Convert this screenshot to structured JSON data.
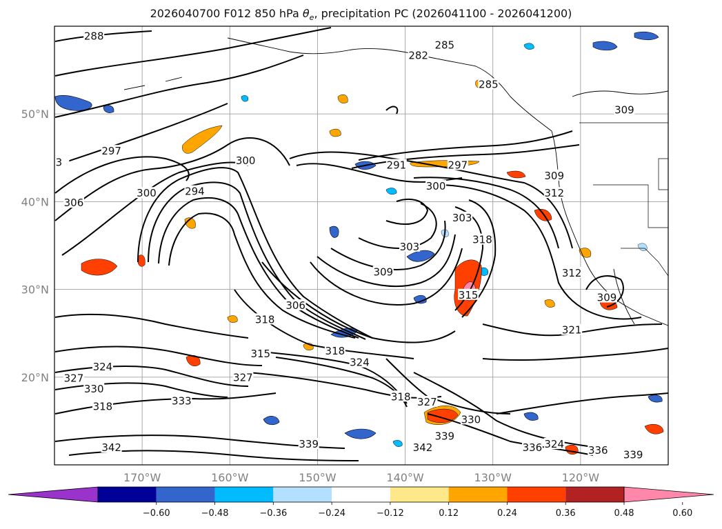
{
  "title": {
    "prefix": "2026040700 F012 850 hPa ",
    "theta_symbol": "θ",
    "theta_sub": "e",
    "suffix": ", precipitation PC (2026041100 - 2026041200)"
  },
  "map": {
    "extent": {
      "lon": [
        -180,
        -110
      ],
      "lat": [
        10,
        60
      ]
    },
    "lat_ticks": [
      {
        "value": 20,
        "label": "20°N"
      },
      {
        "value": 30,
        "label": "30°N"
      },
      {
        "value": 40,
        "label": "40°N"
      },
      {
        "value": 50,
        "label": "50°N"
      }
    ],
    "lon_ticks": [
      {
        "value": -170,
        "label": "170°W"
      },
      {
        "value": -160,
        "label": "160°W"
      },
      {
        "value": -150,
        "label": "150°W"
      },
      {
        "value": -140,
        "label": "140°W"
      },
      {
        "value": -130,
        "label": "130°W"
      },
      {
        "value": -120,
        "label": "120°W"
      }
    ],
    "gridlines": true,
    "contour_labels": [
      {
        "text": "288",
        "lon": -175.5,
        "lat": 58.7
      },
      {
        "text": "282",
        "lon": -138.5,
        "lat": 56.5
      },
      {
        "text": "285",
        "lon": -135.5,
        "lat": 57.7
      },
      {
        "text": "285",
        "lon": -130.5,
        "lat": 53.2
      },
      {
        "text": "297",
        "lon": -173.5,
        "lat": 45.6
      },
      {
        "text": "300",
        "lon": -169.5,
        "lat": 40.8
      },
      {
        "text": "306",
        "lon": -177.8,
        "lat": 39.7
      },
      {
        "text": "294",
        "lon": -164.0,
        "lat": 41.0
      },
      {
        "text": "300",
        "lon": -158.2,
        "lat": 44.5
      },
      {
        "text": "291",
        "lon": -141.0,
        "lat": 44.0
      },
      {
        "text": "297",
        "lon": -134.0,
        "lat": 44.0
      },
      {
        "text": "300",
        "lon": -136.5,
        "lat": 41.6
      },
      {
        "text": "303",
        "lon": -133.5,
        "lat": 38.0
      },
      {
        "text": "303",
        "lon": -139.5,
        "lat": 34.7
      },
      {
        "text": "309",
        "lon": -142.5,
        "lat": 31.8
      },
      {
        "text": "318",
        "lon": -131.2,
        "lat": 35.5
      },
      {
        "text": "315",
        "lon": -132.8,
        "lat": 29.2
      },
      {
        "text": "312",
        "lon": -123.0,
        "lat": 40.8
      },
      {
        "text": "309",
        "lon": -123.0,
        "lat": 42.8
      },
      {
        "text": "309",
        "lon": -115.0,
        "lat": 50.3
      },
      {
        "text": "312",
        "lon": -121.0,
        "lat": 31.7
      },
      {
        "text": "309",
        "lon": -117.0,
        "lat": 28.9
      },
      {
        "text": "306",
        "lon": -152.5,
        "lat": 28.0
      },
      {
        "text": "318",
        "lon": -156.0,
        "lat": 26.4
      },
      {
        "text": "321",
        "lon": -121.0,
        "lat": 25.2
      },
      {
        "text": "315",
        "lon": -156.5,
        "lat": 22.5
      },
      {
        "text": "318",
        "lon": -148.0,
        "lat": 22.8
      },
      {
        "text": "324",
        "lon": -145.2,
        "lat": 21.5
      },
      {
        "text": "324",
        "lon": -174.5,
        "lat": 21.0
      },
      {
        "text": "327",
        "lon": -177.8,
        "lat": 19.7
      },
      {
        "text": "330",
        "lon": -175.5,
        "lat": 18.5
      },
      {
        "text": "327",
        "lon": -158.5,
        "lat": 19.8
      },
      {
        "text": "318",
        "lon": -140.5,
        "lat": 17.6
      },
      {
        "text": "327",
        "lon": -137.5,
        "lat": 17.0
      },
      {
        "text": "333",
        "lon": -165.5,
        "lat": 17.1
      },
      {
        "text": "318",
        "lon": -174.5,
        "lat": 16.5
      },
      {
        "text": "330",
        "lon": -132.5,
        "lat": 15.0
      },
      {
        "text": "339",
        "lon": -135.5,
        "lat": 13.1
      },
      {
        "text": "339",
        "lon": -151.0,
        "lat": 12.2
      },
      {
        "text": "342",
        "lon": -173.5,
        "lat": 11.8
      },
      {
        "text": "336",
        "lon": -125.5,
        "lat": 11.8
      },
      {
        "text": "324",
        "lon": -123.0,
        "lat": 12.2
      },
      {
        "text": "336",
        "lon": -118.0,
        "lat": 11.5
      },
      {
        "text": "339",
        "lon": -114.0,
        "lat": 11.0
      },
      {
        "text": "342",
        "lon": -138.0,
        "lat": 11.8
      },
      {
        "text": "3",
        "lon": -179.5,
        "lat": 44.3
      }
    ]
  },
  "colorbar": {
    "ticks": [
      "−0.60",
      "−0.48",
      "−0.36",
      "−0.24",
      "−0.12",
      "0.12",
      "0.24",
      "0.36",
      "0.48",
      "0.60"
    ],
    "colors": [
      "#9933cc",
      "#000099",
      "#3366cc",
      "#00bbff",
      "#b3e0ff",
      "#ffffff",
      "#ffe88a",
      "#ffa500",
      "#ff4000",
      "#b22222",
      "#ff88aa"
    ]
  }
}
